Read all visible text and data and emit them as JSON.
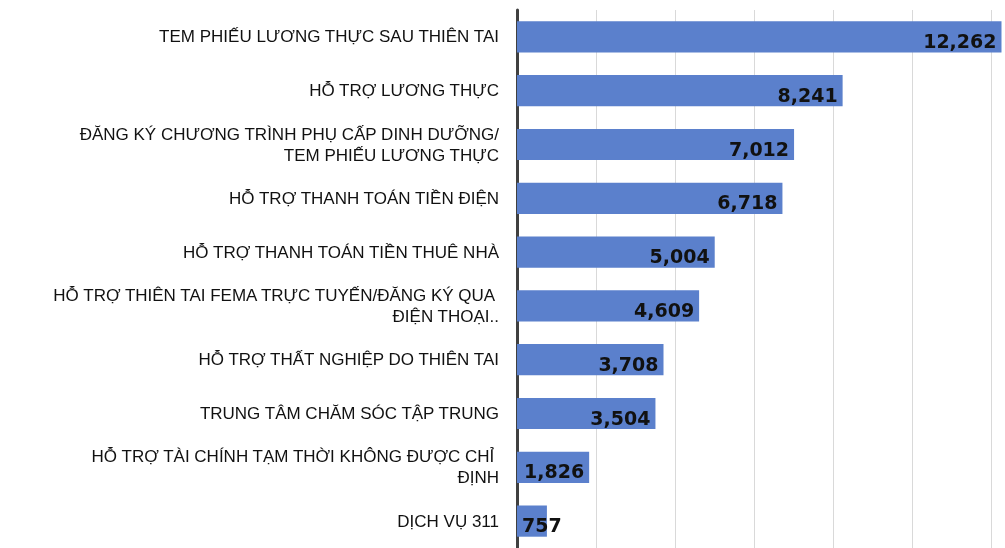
{
  "chart_data": {
    "type": "bar",
    "orientation": "horizontal",
    "categories": [
      "TEM PHIẾU LƯƠNG THỰC SAU THIÊN TAI",
      "HỖ TRỢ LƯƠNG THỰC",
      "ĐĂNG KÝ CHƯƠNG TRÌNH PHỤ CẤP DINH DƯỠNG/TEM PHIẾU LƯƠNG THỰC",
      "HỖ TRỢ THANH TOÁN TIỀN ĐIỆN",
      "HỖ TRỢ THANH TOÁN TIỀN THUÊ NHÀ",
      "HỖ TRỢ THIÊN TAI FEMA TRỰC TUYẾN/ĐĂNG KÝ QUA ĐIỆN THOẠI..",
      "HỖ TRỢ THẤT NGHIỆP DO THIÊN TAI",
      "TRUNG TÂM CHĂM SÓC TẬP TRUNG",
      "HỖ TRỢ TÀI CHÍNH TẠM THỜI KHÔNG ĐƯỢC CHỈ ĐỊNH",
      "DỊCH VỤ 311"
    ],
    "values": [
      12262,
      8241,
      7012,
      6718,
      5004,
      4609,
      3708,
      3504,
      1826,
      757
    ],
    "value_labels": [
      "12,262",
      "8,241",
      "7,012",
      "6,718",
      "5,004",
      "4,609",
      "3,708",
      "3,504",
      "1,826",
      "757"
    ],
    "color": "#5b80cc",
    "xlim": [
      0,
      12300
    ],
    "xticks": [
      {
        "value": 0,
        "label": null
      },
      {
        "value": 2000,
        "label": null
      },
      {
        "value": 4000,
        "label": null
      },
      {
        "value": 6000,
        "label": null
      },
      {
        "value": 8000,
        "label": null
      },
      {
        "value": 10000,
        "label": null
      },
      {
        "value": 12000,
        "label": null
      }
    ],
    "grid": "x",
    "tick_labels": "y"
  }
}
